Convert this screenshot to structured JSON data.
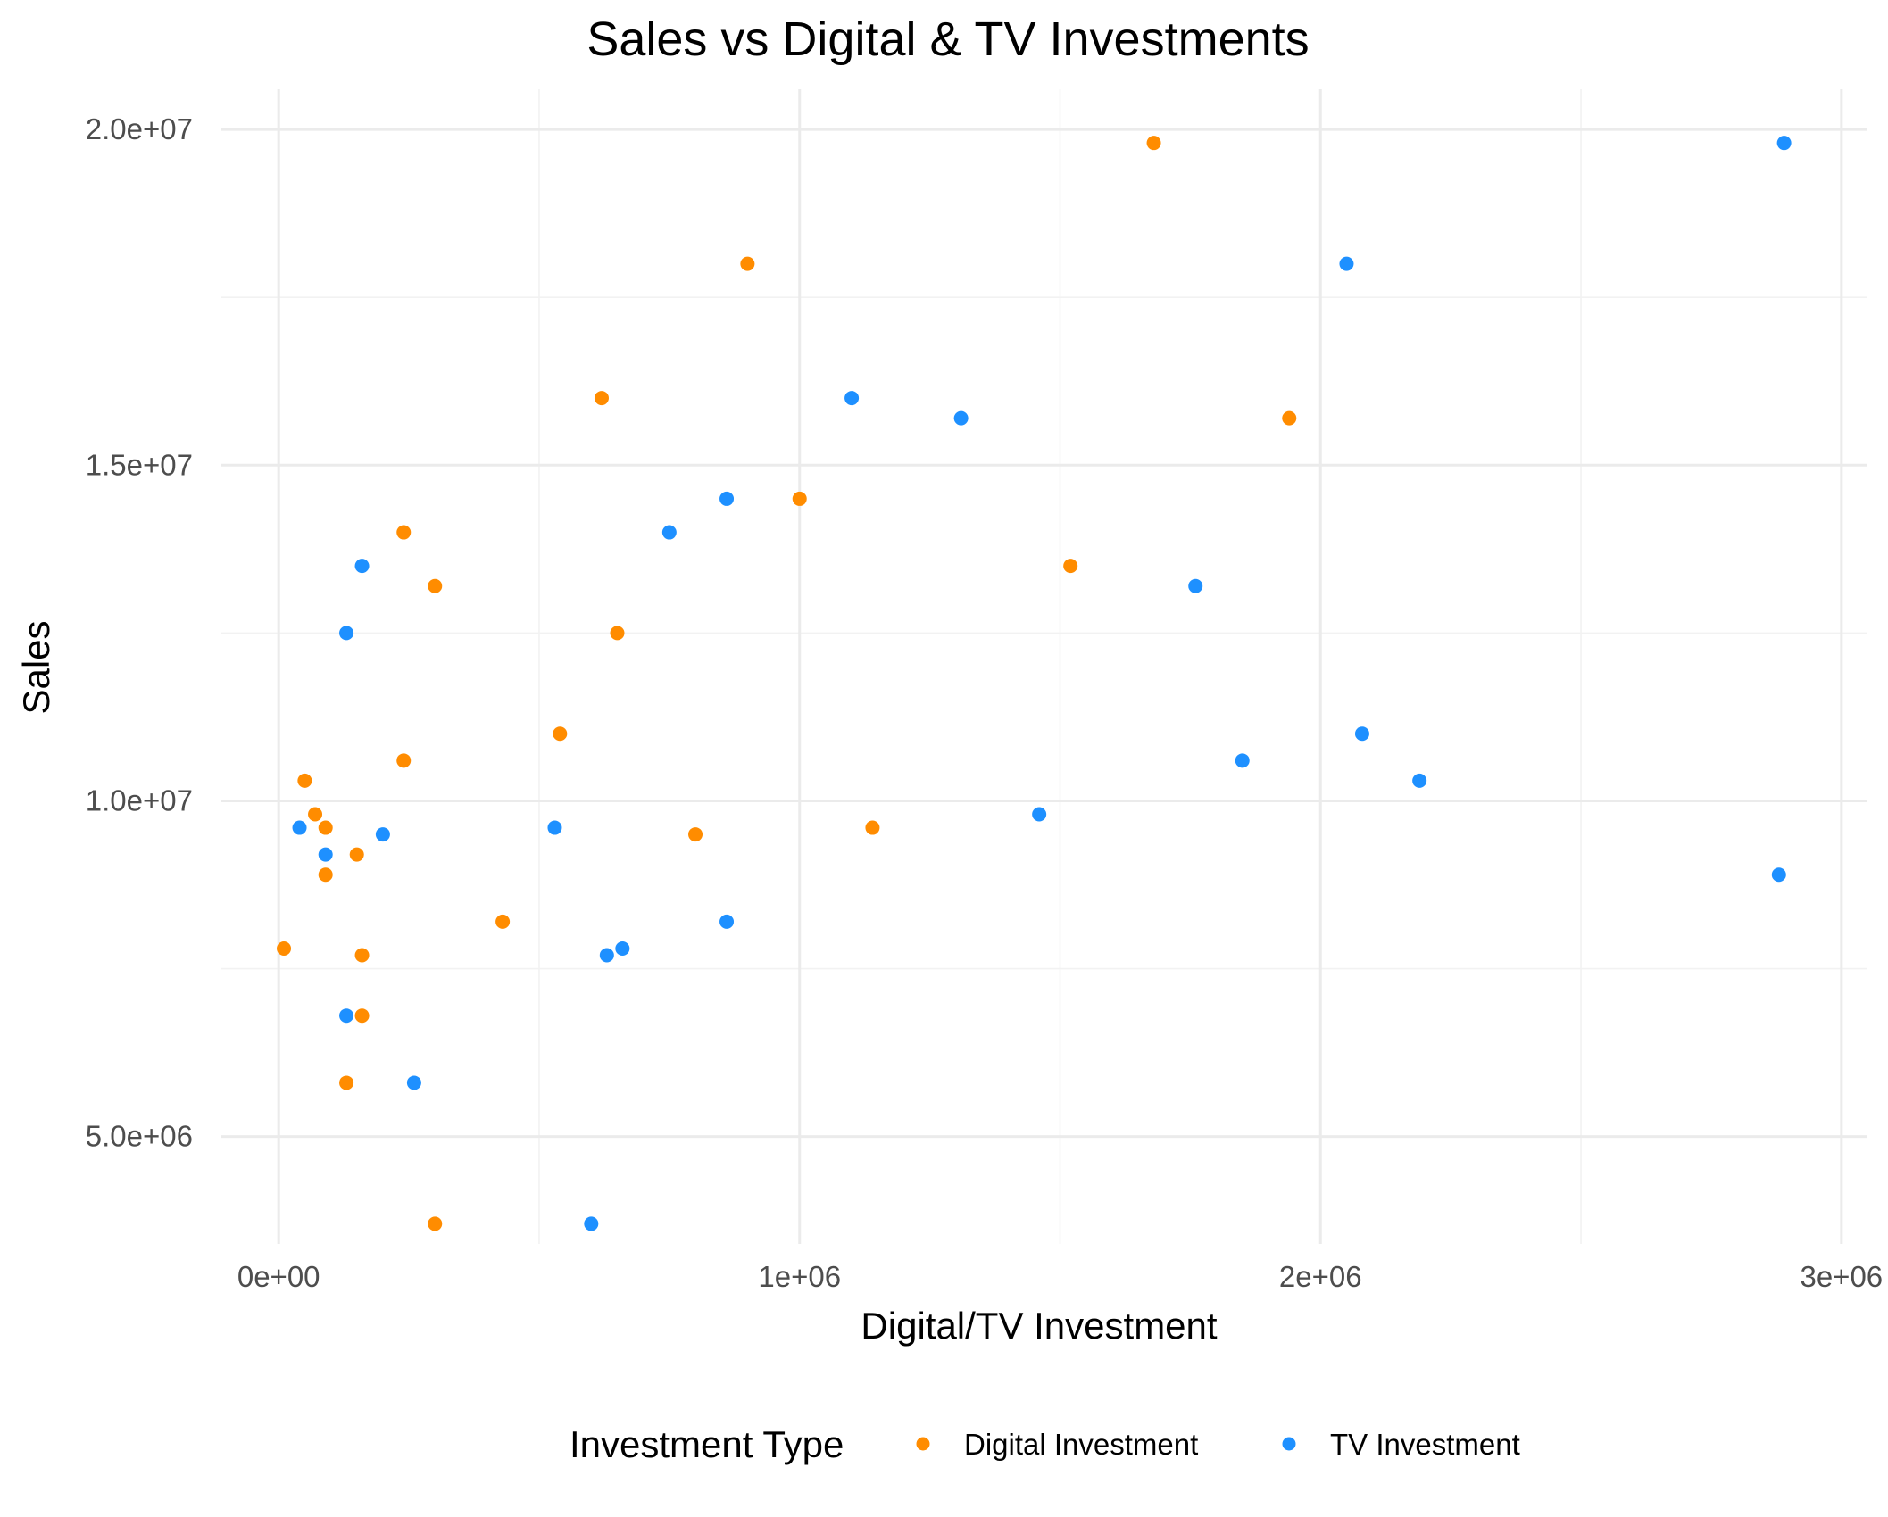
{
  "chart_data": {
    "type": "scatter",
    "title": "Sales vs Digital & TV Investments",
    "xlabel": "Digital/TV Investment",
    "ylabel": "Sales",
    "xlim": [
      -110000,
      3050000
    ],
    "ylim": [
      3400000,
      20600000
    ],
    "x_ticks": [
      {
        "value": 0,
        "label": "0e+00"
      },
      {
        "value": 1000000,
        "label": "1e+06"
      },
      {
        "value": 2000000,
        "label": "2e+06"
      },
      {
        "value": 3000000,
        "label": "3e+06"
      }
    ],
    "y_ticks": [
      {
        "value": 5000000,
        "label": "5.0e+06"
      },
      {
        "value": 10000000,
        "label": "1.0e+07"
      },
      {
        "value": 15000000,
        "label": "1.5e+07"
      },
      {
        "value": 20000000,
        "label": "2.0e+07"
      }
    ],
    "x_minor": [
      500000,
      1500000,
      2500000
    ],
    "y_minor": [
      7500000,
      12500000,
      17500000
    ],
    "grid": true,
    "legend": {
      "title": "Investment Type",
      "position": "bottom"
    },
    "series": [
      {
        "name": "Digital Investment",
        "color": "#ff8c00",
        "points": [
          [
            1680000,
            19800000
          ],
          [
            900000,
            18000000
          ],
          [
            620000,
            16000000
          ],
          [
            1940000,
            15700000
          ],
          [
            1000000,
            14500000
          ],
          [
            240000,
            14000000
          ],
          [
            1520000,
            13500000
          ],
          [
            300000,
            13200000
          ],
          [
            650000,
            12500000
          ],
          [
            540000,
            11000000
          ],
          [
            240000,
            10600000
          ],
          [
            50000,
            10300000
          ],
          [
            70000,
            9800000
          ],
          [
            90000,
            9600000
          ],
          [
            1140000,
            9600000
          ],
          [
            800000,
            9500000
          ],
          [
            150000,
            9200000
          ],
          [
            90000,
            8900000
          ],
          [
            430000,
            8200000
          ],
          [
            10000,
            7800000
          ],
          [
            160000,
            7700000
          ],
          [
            160000,
            6800000
          ],
          [
            130000,
            5800000
          ],
          [
            300000,
            3700000
          ]
        ]
      },
      {
        "name": "TV Investment",
        "color": "#1e90ff",
        "points": [
          [
            2890000,
            19800000
          ],
          [
            2050000,
            18000000
          ],
          [
            1100000,
            16000000
          ],
          [
            1310000,
            15700000
          ],
          [
            860000,
            14500000
          ],
          [
            750000,
            14000000
          ],
          [
            160000,
            13500000
          ],
          [
            1760000,
            13200000
          ],
          [
            130000,
            12500000
          ],
          [
            2080000,
            11000000
          ],
          [
            1850000,
            10600000
          ],
          [
            2190000,
            10300000
          ],
          [
            1460000,
            9800000
          ],
          [
            40000,
            9600000
          ],
          [
            530000,
            9600000
          ],
          [
            200000,
            9500000
          ],
          [
            90000,
            9200000
          ],
          [
            2880000,
            8900000
          ],
          [
            860000,
            8200000
          ],
          [
            660000,
            7800000
          ],
          [
            630000,
            7700000
          ],
          [
            130000,
            6800000
          ],
          [
            260000,
            5800000
          ],
          [
            600000,
            3700000
          ]
        ]
      }
    ]
  }
}
